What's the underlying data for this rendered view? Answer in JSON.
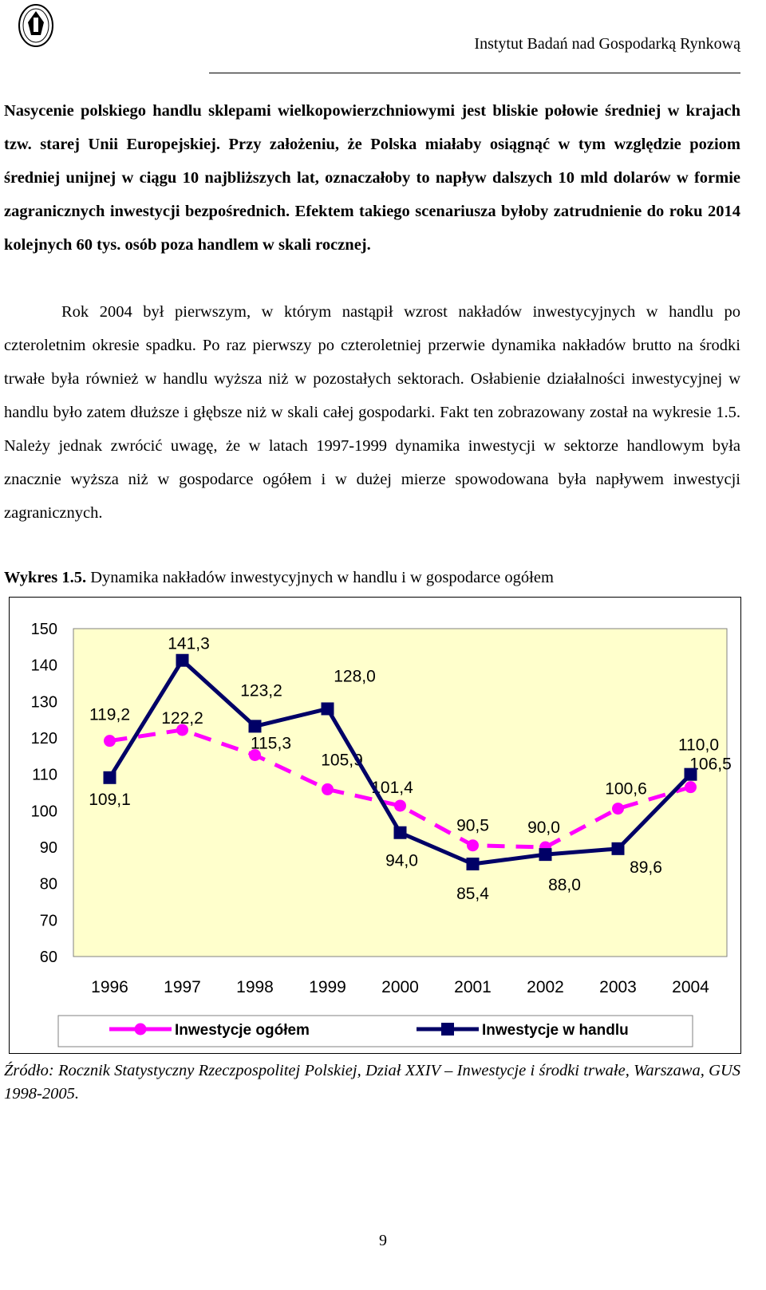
{
  "header": {
    "institute": "Instytut Badań nad Gospodarką Rynkową"
  },
  "paragraphs": {
    "p1": "Nasycenie polskiego handlu sklepami wielkopowierzchniowymi jest bliskie połowie średniej w krajach tzw. starej Unii Europejskiej. Przy założeniu, że Polska miałaby osiągnąć w tym względzie poziom średniej unijnej w ciągu 10 najbliższych lat, oznaczałoby to napływ dalszych 10 mld dolarów w formie zagranicznych inwestycji bezpośrednich. Efektem takiego scenariusza byłoby zatrudnienie do roku 2014 kolejnych 60 tys. osób poza handlem w skali rocznej.",
    "p2": "Rok 2004 był pierwszym, w którym nastąpił wzrost nakładów inwestycyjnych w handlu po czteroletnim okresie spadku. Po raz pierwszy po czteroletniej przerwie dynamika nakładów brutto na środki trwałe była również w handlu wyższa niż w pozostałych sektorach. Osłabienie działalności inwestycyjnej w handlu było zatem dłuższe i głębsze niż w skali całej gospodarki. Fakt ten zobrazowany został na wykresie 1.5. Należy jednak zwrócić uwagę, że w latach 1997-1999 dynamika inwestycji w sektorze handlowym była znacznie wyższa niż w gospodarce ogółem i w dużej mierze spowodowana była napływem inwestycji zagranicznych."
  },
  "figure": {
    "label": "Wykres 1.5.",
    "caption": " Dynamika nakładów inwestycyjnych w handlu i w gospodarce ogółem"
  },
  "chart_data": {
    "type": "line",
    "title": "",
    "xlabel": "",
    "ylabel": "",
    "categories": [
      "1996",
      "1997",
      "1998",
      "1999",
      "2000",
      "2001",
      "2002",
      "2003",
      "2004"
    ],
    "ylim": [
      60,
      150
    ],
    "yticks": [
      150,
      140,
      130,
      120,
      110,
      100,
      90,
      80,
      70,
      60
    ],
    "grid": false,
    "plot_background": "#FFFFCC",
    "legend_position": "bottom",
    "series": [
      {
        "name": "Inwestycje ogółem",
        "color": "#FF00FF",
        "style": "dashed",
        "marker": "circle",
        "values": [
          119.2,
          122.2,
          115.3,
          105.9,
          101.4,
          90.5,
          90.0,
          100.6,
          106.5
        ],
        "labels": [
          "119,2",
          "122,2",
          "115,3",
          "105,9",
          "101,4",
          "90,5",
          "90,0",
          "100,6",
          "106,5"
        ]
      },
      {
        "name": "Inwestycje w handlu",
        "color": "#000066",
        "style": "solid",
        "marker": "square",
        "values": [
          109.1,
          141.3,
          123.2,
          128.0,
          94.0,
          85.4,
          88.0,
          89.6,
          110.0
        ],
        "labels": [
          "109,1",
          "141,3",
          "123,2",
          "128,0",
          "94,0",
          "85,4",
          "88,0",
          "89,6",
          "110,0"
        ]
      }
    ]
  },
  "source": "Źródło: Rocznik Statystyczny Rzeczpospolitej Polskiej, Dział XXIV – Inwestycje i środki trwałe, Warszawa, GUS 1998-2005.",
  "page_number": "9"
}
